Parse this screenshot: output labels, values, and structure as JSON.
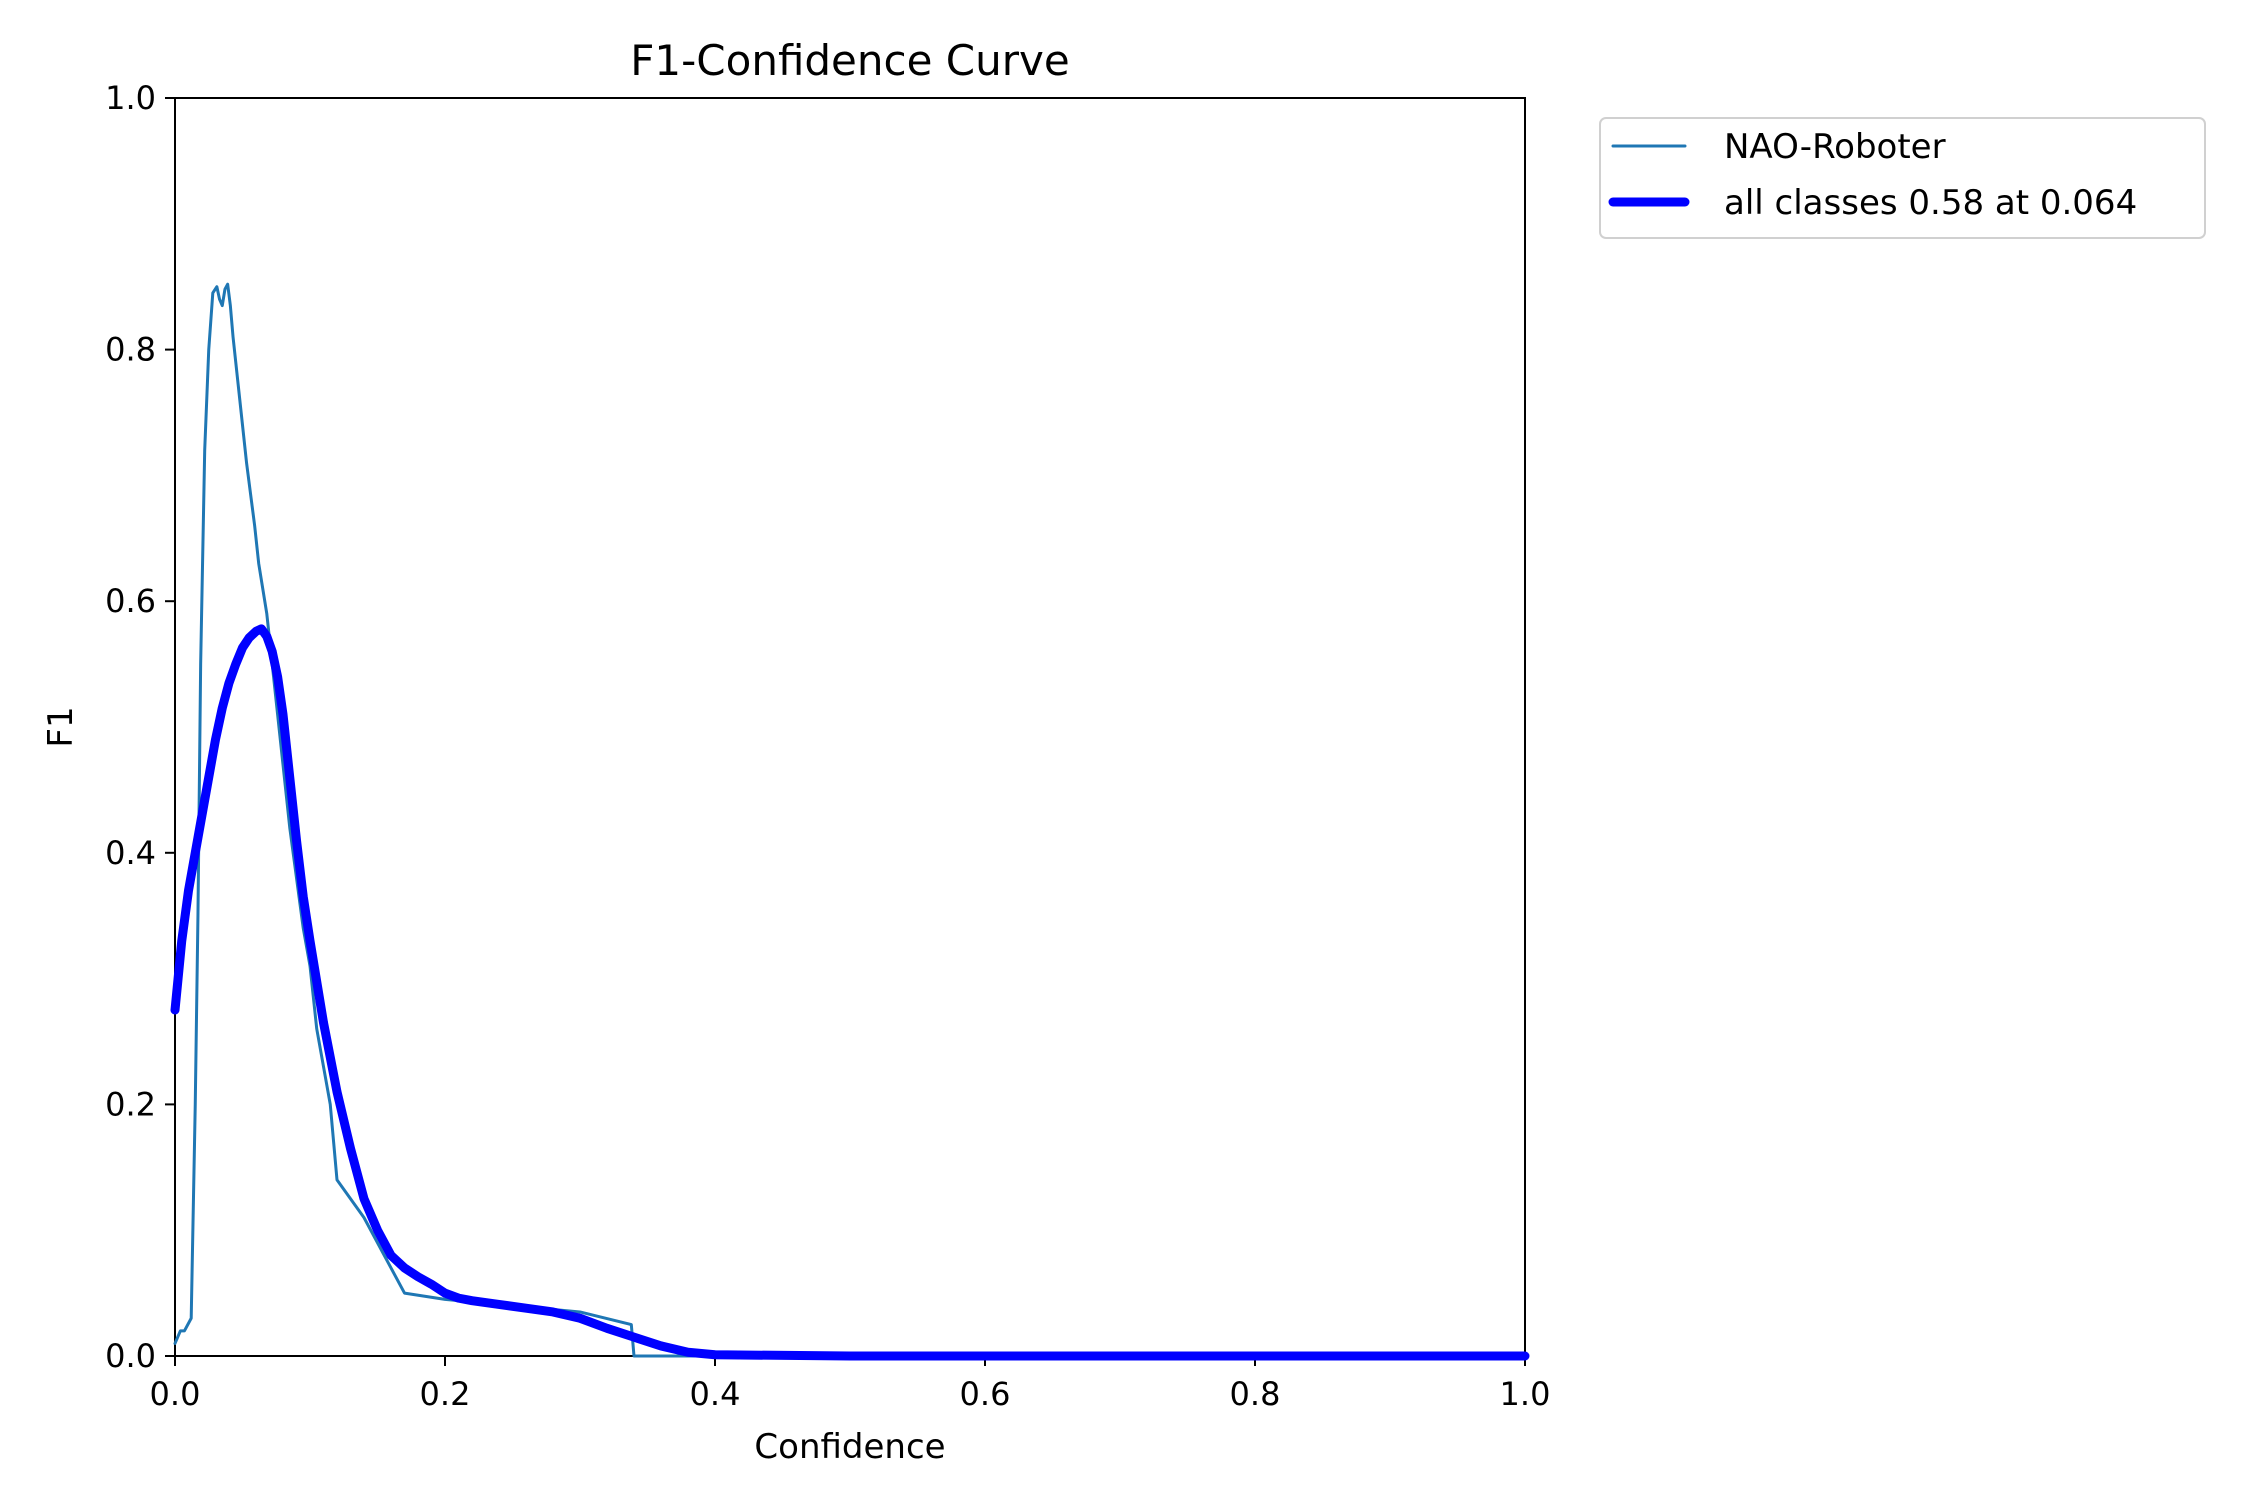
{
  "chart_data": {
    "type": "line",
    "title": "F1-Confidence Curve",
    "xlabel": "Confidence",
    "ylabel": "F1",
    "xlim": [
      0,
      1
    ],
    "ylim": [
      0,
      1
    ],
    "xticks": [
      "0.0",
      "0.2",
      "0.4",
      "0.6",
      "0.8",
      "1.0"
    ],
    "yticks": [
      "0.0",
      "0.2",
      "0.4",
      "0.6",
      "0.8",
      "1.0"
    ],
    "grid": false,
    "legend_position": "outside-top-right",
    "series": [
      {
        "name": "NAO-Roboter",
        "color": "#1f77b4",
        "x": [
          0.0,
          0.004,
          0.007,
          0.012,
          0.015,
          0.017,
          0.019,
          0.022,
          0.025,
          0.028,
          0.031,
          0.033,
          0.035,
          0.037,
          0.039,
          0.041,
          0.043,
          0.045,
          0.047,
          0.05,
          0.053,
          0.056,
          0.059,
          0.062,
          0.065,
          0.068,
          0.071,
          0.075,
          0.08,
          0.085,
          0.09,
          0.095,
          0.1,
          0.105,
          0.11,
          0.115,
          0.12,
          0.13,
          0.14,
          0.15,
          0.16,
          0.17,
          0.2,
          0.25,
          0.3,
          0.338,
          0.34,
          0.4,
          0.5,
          0.6,
          0.7,
          0.8,
          0.9,
          1.0
        ],
        "y": [
          0.01,
          0.02,
          0.02,
          0.03,
          0.2,
          0.35,
          0.55,
          0.72,
          0.8,
          0.845,
          0.85,
          0.84,
          0.835,
          0.848,
          0.852,
          0.835,
          0.81,
          0.79,
          0.77,
          0.74,
          0.71,
          0.685,
          0.66,
          0.63,
          0.61,
          0.59,
          0.56,
          0.52,
          0.47,
          0.42,
          0.38,
          0.34,
          0.31,
          0.26,
          0.23,
          0.2,
          0.14,
          0.125,
          0.11,
          0.09,
          0.07,
          0.05,
          0.045,
          0.04,
          0.035,
          0.025,
          0.0,
          0.0,
          0.0,
          0.0,
          0.0,
          0.0,
          0.0,
          0.0
        ]
      },
      {
        "name": "all classes 0.58 at 0.064",
        "color": "#0000ff",
        "x": [
          0.0,
          0.005,
          0.01,
          0.015,
          0.02,
          0.025,
          0.03,
          0.035,
          0.04,
          0.045,
          0.05,
          0.055,
          0.06,
          0.064,
          0.068,
          0.072,
          0.076,
          0.08,
          0.085,
          0.09,
          0.095,
          0.1,
          0.11,
          0.12,
          0.13,
          0.14,
          0.15,
          0.16,
          0.17,
          0.18,
          0.19,
          0.2,
          0.21,
          0.22,
          0.24,
          0.26,
          0.28,
          0.3,
          0.32,
          0.34,
          0.36,
          0.38,
          0.4,
          0.5,
          0.6,
          0.7,
          0.8,
          0.9,
          1.0
        ],
        "y": [
          0.275,
          0.33,
          0.37,
          0.4,
          0.43,
          0.46,
          0.49,
          0.515,
          0.535,
          0.55,
          0.563,
          0.571,
          0.576,
          0.578,
          0.572,
          0.56,
          0.54,
          0.51,
          0.46,
          0.41,
          0.365,
          0.33,
          0.265,
          0.21,
          0.165,
          0.125,
          0.1,
          0.08,
          0.07,
          0.063,
          0.057,
          0.05,
          0.046,
          0.044,
          0.041,
          0.038,
          0.035,
          0.03,
          0.022,
          0.015,
          0.008,
          0.003,
          0.001,
          0.0,
          0.0,
          0.0,
          0.0,
          0.0,
          0.0
        ]
      }
    ]
  }
}
